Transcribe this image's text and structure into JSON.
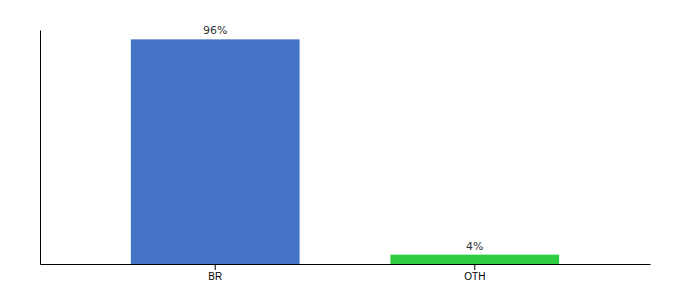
{
  "chart_data": {
    "type": "bar",
    "categories": [
      "BR",
      "OTH"
    ],
    "values": [
      96,
      4
    ],
    "value_labels": [
      "96%",
      "4%"
    ],
    "colors": [
      "#4472c4",
      "#2ecc40"
    ],
    "ylim": [
      0,
      100
    ],
    "yticks": [],
    "tick_labels": "x",
    "data_labels": true
  }
}
